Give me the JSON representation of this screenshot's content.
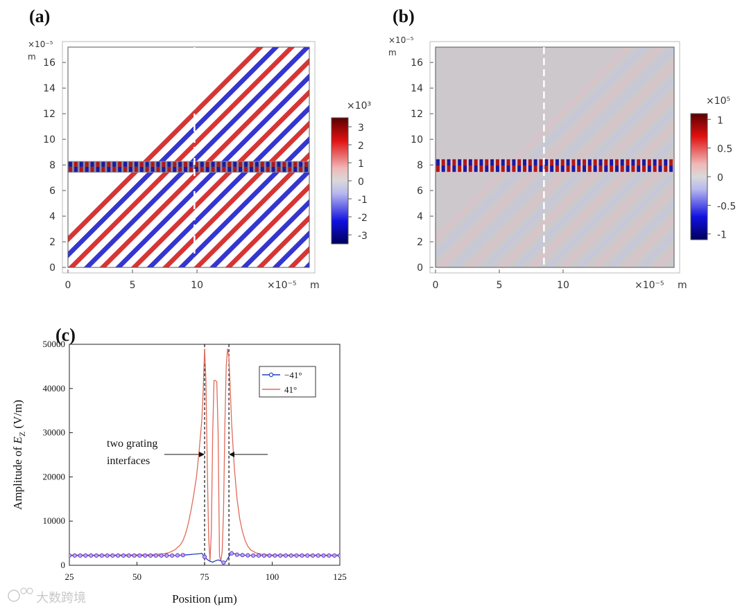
{
  "watermark": "大数跨境",
  "chart_data": [
    {
      "panel": "(a)",
      "type": "heatmap",
      "x_unit": "m",
      "y_unit": "m",
      "x_exponent_label": "×10⁻⁵",
      "y_exponent_label": "×10⁻⁵",
      "x_ticks": [
        0,
        5,
        10
      ],
      "y_ticks": [
        0,
        2,
        4,
        6,
        8,
        10,
        12,
        14,
        16
      ],
      "xlim": [
        0,
        18.7
      ],
      "ylim": [
        0,
        17.2
      ],
      "colorbar": {
        "multiplier": "×10³",
        "ticks": [
          "3",
          "2",
          "1",
          "0",
          "-1",
          "-2",
          "-3"
        ],
        "range": [
          -3.5,
          3.5
        ]
      },
      "stripe_count": 30,
      "grating_y_range": [
        7.4,
        8.3
      ],
      "cut_line_x": 9.8
    },
    {
      "panel": "(b)",
      "type": "heatmap",
      "x_unit": "m",
      "y_unit": "m",
      "x_exponent_label": "×10⁻⁵",
      "y_exponent_label": "×10⁻⁵",
      "x_ticks": [
        0,
        5,
        10
      ],
      "y_ticks": [
        0,
        2,
        4,
        6,
        8,
        10,
        12,
        14,
        16
      ],
      "xlim": [
        0,
        18.7
      ],
      "ylim": [
        0,
        17.2
      ],
      "colorbar": {
        "multiplier": "×10⁵",
        "ticks": [
          "1",
          "0.5",
          "0",
          "-0.5",
          "-1"
        ],
        "range": [
          -1.1,
          1.1
        ]
      },
      "stripe_count": 30,
      "grating_y_range": [
        7.4,
        8.5
      ],
      "cut_line_x": 8.5
    },
    {
      "panel": "(c)",
      "type": "line",
      "xlabel": "Position (μm)",
      "ylabel_prefix": "Amplitude of ",
      "ylabel_symbol": "E",
      "ylabel_sub": "Z",
      "ylabel_suffix": " (V/m)",
      "xlim": [
        25,
        125
      ],
      "ylim": [
        0,
        50000
      ],
      "x_ticks": [
        25,
        50,
        75,
        100,
        125
      ],
      "y_ticks": [
        0,
        10000,
        20000,
        30000,
        40000,
        50000
      ],
      "vlines": [
        75,
        84
      ],
      "annotation": {
        "line1": "two grating",
        "line2": "interfaces"
      },
      "series": [
        {
          "name": "−41°",
          "color": "#1f3fbf",
          "marker": "circle",
          "x": [
            25,
            27,
            29,
            31,
            33,
            35,
            37,
            39,
            41,
            43,
            45,
            47,
            49,
            51,
            53,
            55,
            57,
            59,
            61,
            63,
            65,
            67,
            69,
            71,
            73,
            74,
            75,
            76,
            77,
            78,
            79,
            80,
            81,
            82,
            83,
            84,
            85,
            86,
            87,
            89,
            91,
            93,
            95,
            97,
            99,
            101,
            103,
            105,
            107,
            109,
            111,
            113,
            115,
            117,
            119,
            121,
            123,
            125
          ],
          "y": [
            2200,
            2200,
            2200,
            2200,
            2200,
            2200,
            2200,
            2200,
            2200,
            2200,
            2200,
            2200,
            2200,
            2200,
            2200,
            2200,
            2200,
            2200,
            2200,
            2200,
            2250,
            2300,
            2400,
            2500,
            2600,
            2700,
            1900,
            1300,
            900,
            700,
            1000,
            1200,
            1000,
            600,
            900,
            2000,
            2700,
            2600,
            2400,
            2300,
            2250,
            2200,
            2200,
            2200,
            2200,
            2200,
            2200,
            2200,
            2200,
            2200,
            2200,
            2200,
            2200,
            2200,
            2200,
            2200,
            2200,
            2200
          ],
          "marker_x": [
            25,
            27,
            29,
            31,
            33,
            35,
            37,
            39,
            41,
            43,
            45,
            47,
            49,
            51,
            53,
            55,
            57,
            59,
            61,
            63,
            65,
            67,
            75,
            82,
            85,
            87,
            89,
            91,
            93,
            95,
            97,
            99,
            101,
            103,
            105,
            107,
            109,
            111,
            113,
            115,
            117,
            119,
            121,
            123,
            125
          ]
        },
        {
          "name": "41°",
          "color": "#e06a5a",
          "marker": "none",
          "x": [
            25,
            40,
            55,
            60,
            62,
            64,
            66,
            67,
            68,
            69,
            70,
            71,
            72,
            73,
            74,
            74.5,
            75,
            75.5,
            76,
            76.5,
            77,
            77.5,
            78,
            78.5,
            79,
            79.5,
            80,
            80.5,
            81,
            81.5,
            82,
            82.5,
            83,
            83.5,
            84,
            84.5,
            85,
            86,
            87,
            88,
            89,
            90,
            91,
            92,
            94,
            96,
            100,
            110,
            125
          ],
          "y": [
            2300,
            2300,
            2400,
            2600,
            2900,
            3500,
            4600,
            5600,
            7200,
            9500,
            12500,
            16000,
            20000,
            26000,
            33000,
            40000,
            49000,
            42000,
            22000,
            6000,
            1000,
            8000,
            30000,
            41800,
            41800,
            41500,
            30000,
            2000,
            1000,
            3000,
            12000,
            32000,
            45000,
            49000,
            47000,
            40000,
            32000,
            22000,
            15000,
            10500,
            7600,
            5600,
            4300,
            3500,
            2800,
            2500,
            2350,
            2300,
            2300
          ]
        }
      ]
    }
  ]
}
